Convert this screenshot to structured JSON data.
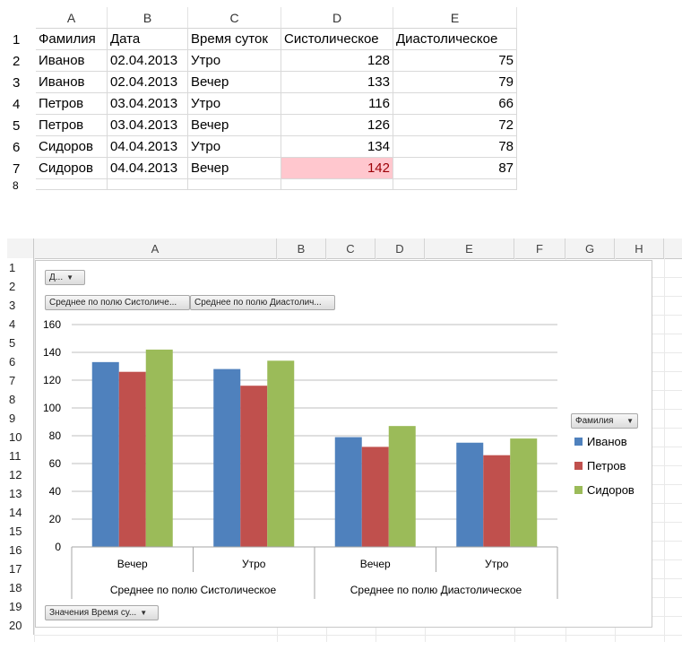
{
  "sheet1": {
    "columns": [
      "A",
      "B",
      "C",
      "D",
      "E"
    ],
    "row_numbers": [
      "1",
      "2",
      "3",
      "4",
      "5",
      "6",
      "7",
      "8"
    ],
    "header": [
      "Фамилия",
      "Дата",
      "Время суток",
      "Систолическое",
      "Диастолическое"
    ],
    "rows": [
      [
        "Иванов",
        "02.04.2013",
        "Утро",
        "128",
        "75"
      ],
      [
        "Иванов",
        "02.04.2013",
        "Вечер",
        "133",
        "79"
      ],
      [
        "Петров",
        "03.04.2013",
        "Утро",
        "116",
        "66"
      ],
      [
        "Петров",
        "03.04.2013",
        "Вечер",
        "126",
        "72"
      ],
      [
        "Сидоров",
        "04.04.2013",
        "Утро",
        "134",
        "78"
      ],
      [
        "Сидоров",
        "04.04.2013",
        "Вечер",
        "142",
        "87"
      ]
    ],
    "highlight_color": "#ffc7ce"
  },
  "sheet2": {
    "columns": [
      "A",
      "B",
      "C",
      "D",
      "E",
      "F",
      "G",
      "H"
    ],
    "row_numbers": [
      "1",
      "2",
      "3",
      "4",
      "5",
      "6",
      "7",
      "8",
      "9",
      "10",
      "11",
      "12",
      "13",
      "14",
      "15",
      "16",
      "17",
      "18",
      "19",
      "20"
    ]
  },
  "pivot": {
    "filter_button": "Д...",
    "value_buttons": [
      "Среднее по полю Систоличе...",
      "Среднее по полю Диастолич..."
    ],
    "legend_button": "Фамилия",
    "axis_button": "Значения Время су..."
  },
  "chart_data": {
    "type": "bar",
    "groups": [
      "Среднее по полю Систолическое",
      "Среднее по полю Диастолическое"
    ],
    "categories": [
      "Вечер",
      "Утро",
      "Вечер",
      "Утро"
    ],
    "series": [
      {
        "name": "Иванов",
        "color": "#4f81bd",
        "values": [
          133,
          128,
          79,
          75
        ]
      },
      {
        "name": "Петров",
        "color": "#c0504d",
        "values": [
          126,
          116,
          72,
          66
        ]
      },
      {
        "name": "Сидоров",
        "color": "#9bbb59",
        "values": [
          142,
          134,
          87,
          78
        ]
      }
    ],
    "yticks": [
      "0",
      "20",
      "40",
      "60",
      "80",
      "100",
      "120",
      "140",
      "160"
    ],
    "ylim": [
      0,
      160
    ],
    "grid": true,
    "legend_position": "right"
  }
}
